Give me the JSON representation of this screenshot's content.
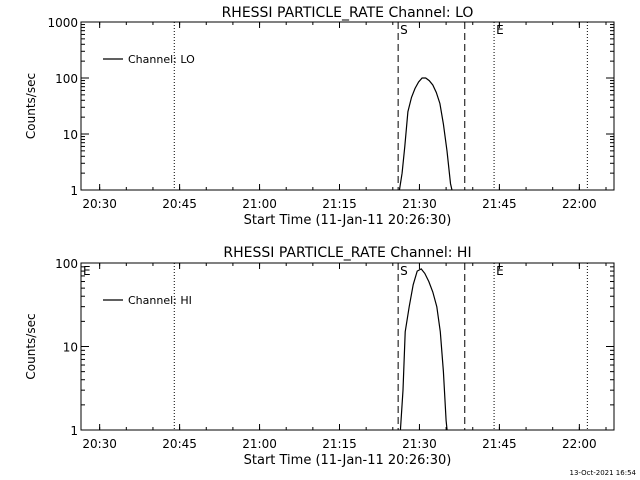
{
  "footer_timestamp": "13-Oct-2021 16:54",
  "chart_data": [
    {
      "type": "line",
      "title": "RHESSI PARTICLE_RATE Channel: LO",
      "xlabel": "Start Time (11-Jan-11 20:26:30)",
      "ylabel": "Counts/sec",
      "x_ticks": [
        "20:30",
        "20:45",
        "21:00",
        "21:15",
        "21:30",
        "21:45",
        "22:00"
      ],
      "y_scale": "log",
      "y_ticks": [
        "1",
        "10",
        "100",
        "1000"
      ],
      "ylim": [
        1,
        1000
      ],
      "xlim": [
        "20:26:30",
        "22:06:30"
      ],
      "legend": {
        "label": "Channel: LO",
        "position": "top-left"
      },
      "grid": false,
      "series": [
        {
          "name": "Channel: LO",
          "points": [
            [
              "21:26:05",
              0.8
            ],
            [
              "21:26:45",
              2
            ],
            [
              "21:27:15",
              6
            ],
            [
              "21:27:50",
              25
            ],
            [
              "21:28:30",
              45
            ],
            [
              "21:29:10",
              65
            ],
            [
              "21:29:50",
              85
            ],
            [
              "21:30:30",
              100
            ],
            [
              "21:31:10",
              100
            ],
            [
              "21:31:50",
              90
            ],
            [
              "21:32:30",
              75
            ],
            [
              "21:33:10",
              55
            ],
            [
              "21:33:50",
              35
            ],
            [
              "21:34:30",
              15
            ],
            [
              "21:35:10",
              5
            ],
            [
              "21:35:50",
              1.3
            ],
            [
              "21:36:20",
              0.8
            ]
          ]
        }
      ],
      "markers": [
        {
          "label": "S",
          "time": "21:26:00",
          "style": "dashed"
        },
        {
          "label": "",
          "time": "21:38:30",
          "style": "dashed"
        },
        {
          "label": "E",
          "time": "21:44:00",
          "style": "dotted"
        },
        {
          "label": "",
          "time": "20:44:00",
          "style": "dotted"
        },
        {
          "label": "",
          "time": "22:01:30",
          "style": "dotted"
        }
      ]
    },
    {
      "type": "line",
      "title": "RHESSI PARTICLE_RATE Channel: HI",
      "xlabel": "Start Time (11-Jan-11 20:26:30)",
      "ylabel": "Counts/sec",
      "x_ticks": [
        "20:30",
        "20:45",
        "21:00",
        "21:15",
        "21:30",
        "21:45",
        "22:00"
      ],
      "y_scale": "log",
      "y_ticks": [
        "1",
        "10",
        "100"
      ],
      "ylim": [
        1,
        100
      ],
      "xlim": [
        "20:26:30",
        "22:06:30"
      ],
      "legend": {
        "label": "Channel: HI",
        "position": "top-left"
      },
      "grid": false,
      "series": [
        {
          "name": "Channel: HI",
          "points": [
            [
              "21:26:20",
              0.8
            ],
            [
              "21:26:55",
              3
            ],
            [
              "21:27:20",
              15
            ],
            [
              "21:28:05",
              30
            ],
            [
              "21:28:50",
              55
            ],
            [
              "21:29:35",
              80
            ],
            [
              "21:30:20",
              85
            ],
            [
              "21:31:00",
              75
            ],
            [
              "21:31:45",
              60
            ],
            [
              "21:32:30",
              45
            ],
            [
              "21:33:15",
              30
            ],
            [
              "21:33:55",
              15
            ],
            [
              "21:34:30",
              5
            ],
            [
              "21:35:00",
              1.3
            ],
            [
              "21:35:20",
              0.8
            ]
          ]
        }
      ],
      "markers": [
        {
          "label": "S",
          "time": "21:26:00",
          "style": "dashed"
        },
        {
          "label": "",
          "time": "21:38:30",
          "style": "dashed"
        },
        {
          "label": "E",
          "time": "21:44:00",
          "style": "dotted"
        },
        {
          "label": "E",
          "time": "20:26:30",
          "style": "none"
        },
        {
          "label": "",
          "time": "20:44:00",
          "style": "dotted"
        },
        {
          "label": "",
          "time": "22:01:30",
          "style": "dotted"
        }
      ]
    }
  ]
}
